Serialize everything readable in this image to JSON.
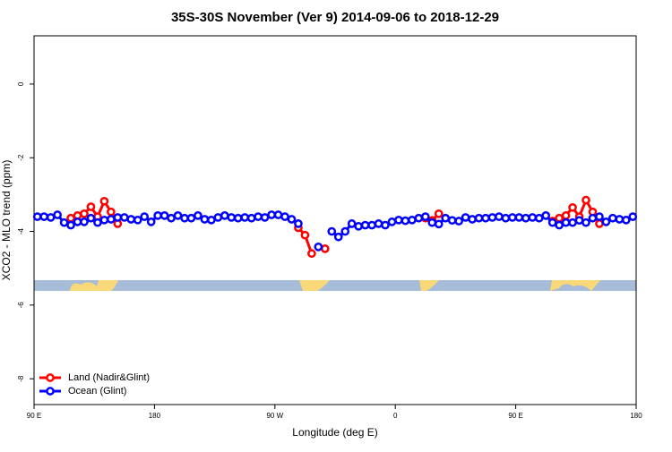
{
  "chart_data": {
    "type": "line",
    "title": "35S-30S November (Ver 9)   2014-09-06 to 2018-12-29",
    "x_label": "Longitude (deg E)",
    "y_label": "XCO2 - MLO trend (ppm)",
    "x": [
      92.5,
      97.5,
      102.5,
      107.5,
      112.5,
      117.5,
      122.5,
      127.5,
      132.5,
      137.5,
      142.5,
      147.5,
      152.5,
      157.5,
      162.5,
      167.5,
      172.5,
      177.5,
      182.5,
      187.5,
      192.5,
      197.5,
      202.5,
      207.5,
      212.5,
      217.5,
      222.5,
      227.5,
      232.5,
      237.5,
      242.5,
      247.5,
      252.5,
      257.5,
      262.5,
      267.5,
      272.5,
      277.5,
      282.5,
      287.5,
      292.5,
      297.5,
      302.5,
      307.5,
      312.5,
      317.5,
      322.5,
      327.5,
      332.5,
      337.5,
      342.5,
      347.5,
      352.5,
      357.5,
      362.5,
      367.5,
      372.5,
      377.5,
      382.5,
      387.5,
      392.5,
      397.5,
      402.5,
      407.5,
      412.5,
      417.5,
      422.5,
      427.5,
      432.5,
      437.5,
      442.5,
      447.5,
      452.5,
      457.5,
      462.5,
      467.5,
      472.5,
      477.5,
      482.5,
      487.5,
      492.5,
      497.5,
      502.5,
      507.5,
      512.5,
      517.5,
      522.5,
      527.5,
      532.5,
      537.5
    ],
    "series": [
      {
        "name": "Land (Nadir&Glint)",
        "color": "#ff0000",
        "values": [
          null,
          null,
          null,
          null,
          null,
          -3.64,
          -3.57,
          -3.52,
          -3.33,
          -3.6,
          -3.18,
          -3.47,
          -3.79,
          null,
          null,
          null,
          null,
          null,
          null,
          null,
          null,
          null,
          null,
          null,
          null,
          null,
          null,
          null,
          null,
          null,
          null,
          null,
          null,
          null,
          null,
          null,
          null,
          null,
          null,
          -3.9,
          -4.1,
          -4.6,
          null,
          -4.47,
          null,
          null,
          null,
          null,
          null,
          null,
          null,
          null,
          null,
          null,
          null,
          null,
          null,
          null,
          -3.64,
          -3.7,
          -3.52,
          null,
          null,
          null,
          null,
          null,
          null,
          null,
          null,
          null,
          null,
          null,
          null,
          null,
          null,
          null,
          null,
          -3.72,
          -3.64,
          -3.57,
          -3.35,
          -3.6,
          -3.15,
          -3.47,
          -3.79,
          null,
          null,
          null,
          null,
          null
        ]
      },
      {
        "name": "Ocean (Glint)",
        "color": "#0000ff",
        "values": [
          -3.6,
          -3.6,
          -3.62,
          -3.55,
          -3.76,
          -3.83,
          -3.74,
          -3.74,
          -3.64,
          -3.76,
          -3.69,
          -3.67,
          -3.62,
          -3.62,
          -3.67,
          -3.69,
          -3.6,
          -3.74,
          -3.57,
          -3.57,
          -3.64,
          -3.57,
          -3.64,
          -3.64,
          -3.57,
          -3.67,
          -3.69,
          -3.62,
          -3.57,
          -3.62,
          -3.64,
          -3.62,
          -3.64,
          -3.6,
          -3.62,
          -3.55,
          -3.55,
          -3.6,
          -3.67,
          -3.79,
          null,
          null,
          -4.42,
          null,
          -4.0,
          -4.15,
          -4.0,
          -3.79,
          -3.86,
          -3.83,
          -3.83,
          -3.79,
          -3.83,
          -3.74,
          -3.69,
          -3.71,
          -3.69,
          -3.64,
          -3.6,
          -3.76,
          -3.8,
          -3.64,
          -3.7,
          -3.72,
          -3.62,
          -3.67,
          -3.64,
          -3.64,
          -3.62,
          -3.6,
          -3.64,
          -3.62,
          -3.62,
          -3.64,
          -3.62,
          -3.64,
          -3.57,
          -3.76,
          -3.83,
          -3.76,
          -3.76,
          -3.7,
          -3.76,
          -3.64,
          -3.6,
          -3.74,
          -3.64,
          -3.67,
          -3.69,
          -3.6
        ]
      }
    ],
    "xlim": [
      90,
      540
    ],
    "xticks": [
      {
        "value": 90,
        "label": "90 E"
      },
      180,
      {
        "value": 270,
        "label": "90 W"
      },
      {
        "value": 360,
        "label": "0"
      },
      {
        "value": 450,
        "label": "90 E"
      },
      {
        "value": 540,
        "label": "180"
      }
    ],
    "ylim": [
      -8.7,
      1.31
    ],
    "yticks": [
      0,
      -2,
      -4,
      -6,
      -8
    ],
    "legend": "bottom-left"
  }
}
